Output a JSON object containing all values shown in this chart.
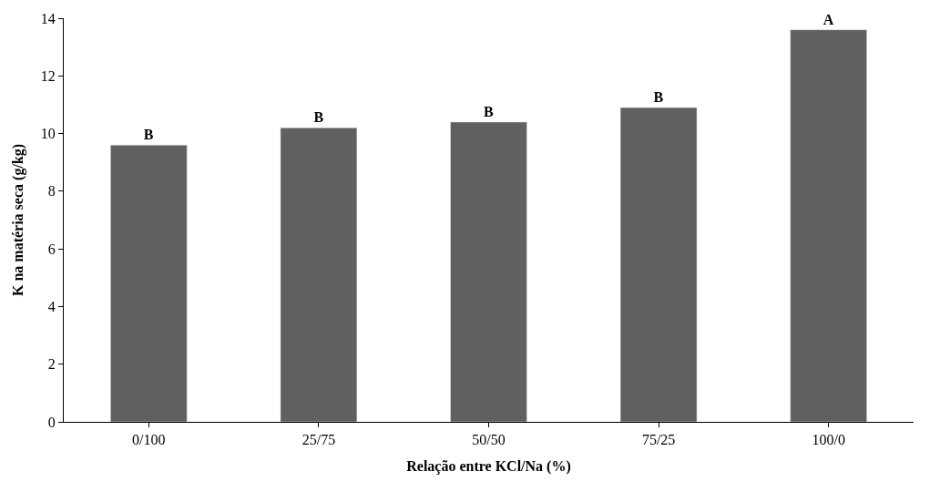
{
  "chart_data": {
    "type": "bar",
    "xlabel": "Relação entre KCl/Na (%)",
    "ylabel": "K na matéria seca (g/kg)",
    "categories": [
      "0/100",
      "25/75",
      "50/50",
      "75/25",
      "100/0"
    ],
    "values": [
      9.6,
      10.2,
      10.4,
      10.9,
      13.6
    ],
    "value_labels": [
      "B",
      "B",
      "B",
      "B",
      "A"
    ],
    "color": "#606060",
    "ylim": [
      0,
      14
    ],
    "yticks": [
      0,
      2,
      4,
      6,
      8,
      10,
      12,
      14
    ],
    "legend": false
  }
}
